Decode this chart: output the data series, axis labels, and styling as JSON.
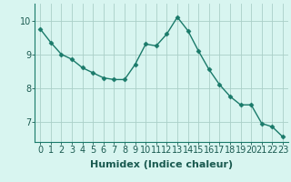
{
  "x": [
    0,
    1,
    2,
    3,
    4,
    5,
    6,
    7,
    8,
    9,
    10,
    11,
    12,
    13,
    14,
    15,
    16,
    17,
    18,
    19,
    20,
    21,
    22,
    23
  ],
  "y": [
    9.75,
    9.35,
    9.0,
    8.85,
    8.6,
    8.45,
    8.3,
    8.25,
    8.25,
    8.7,
    9.3,
    9.25,
    9.6,
    10.1,
    9.7,
    9.1,
    8.55,
    8.1,
    7.75,
    7.5,
    7.5,
    6.95,
    6.85,
    6.55
  ],
  "line_color": "#1a7a6a",
  "marker": "D",
  "marker_size": 2.5,
  "bg_color": "#d8f5f0",
  "grid_color": "#aacfc8",
  "xlabel": "Humidex (Indice chaleur)",
  "xlim": [
    -0.5,
    23.5
  ],
  "ylim": [
    6.4,
    10.5
  ],
  "yticks": [
    7,
    8,
    9,
    10
  ],
  "xticks": [
    0,
    1,
    2,
    3,
    4,
    5,
    6,
    7,
    8,
    9,
    10,
    11,
    12,
    13,
    14,
    15,
    16,
    17,
    18,
    19,
    20,
    21,
    22,
    23
  ],
  "tick_fontsize": 7,
  "label_fontsize": 8
}
